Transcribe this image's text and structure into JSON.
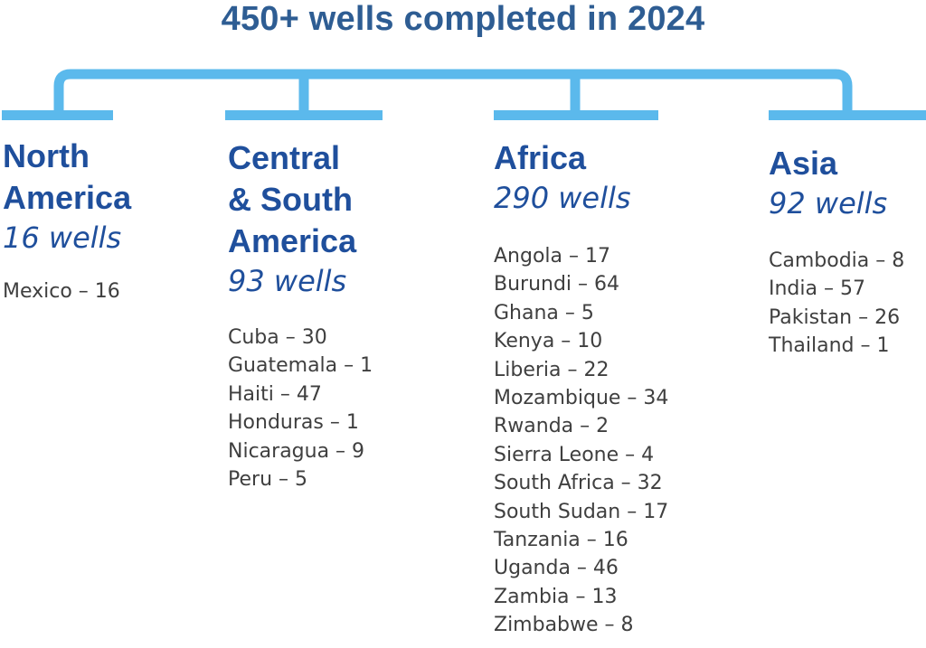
{
  "title": "450+ wells completed in 2024",
  "colors": {
    "title": "#2e5d93",
    "region": "#1f4f9c",
    "connector": "#5bb9ec",
    "country_text": "#3f3f3f"
  },
  "regions": [
    {
      "name": "North\nAmerica",
      "count": "16 wells",
      "countries": [
        "Mexico – 16"
      ]
    },
    {
      "name": "Central\n& South\nAmerica",
      "count": "93 wells",
      "countries": [
        "Cuba – 30",
        "Guatemala – 1",
        "Haiti – 47",
        "Honduras – 1",
        "Nicaragua – 9",
        "Peru – 5"
      ]
    },
    {
      "name": "Africa",
      "count": "290 wells",
      "countries": [
        "Angola – 17",
        "Burundi – 64",
        "Ghana – 5",
        "Kenya – 10",
        "Liberia – 22",
        "Mozambique – 34",
        "Rwanda – 2",
        "Sierra Leone – 4",
        "South Africa – 32",
        "South Sudan – 17",
        "Tanzania – 16",
        "Uganda – 46",
        "Zambia – 13",
        "Zimbabwe – 8"
      ]
    },
    {
      "name": "Asia",
      "count": "92 wells",
      "countries": [
        "Cambodia – 8",
        "India – 57",
        "Pakistan – 26",
        "Thailand – 1"
      ]
    }
  ]
}
